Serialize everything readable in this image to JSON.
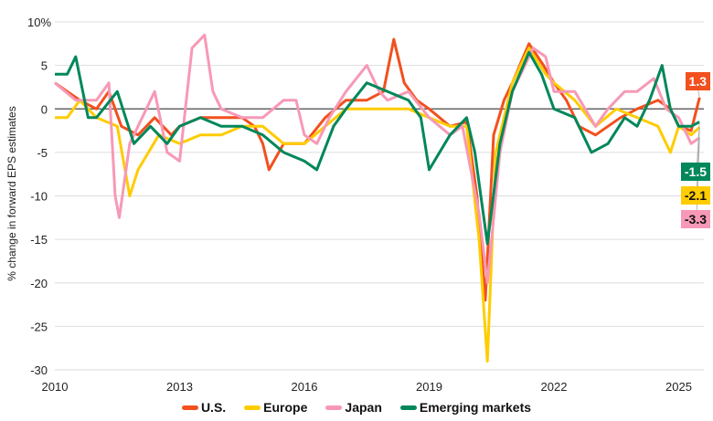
{
  "chart_data": {
    "type": "line",
    "ylabel": "% change in forward EPS estimates",
    "ylim": [
      -30,
      10
    ],
    "yticks": [
      "10%",
      "5",
      "0",
      "-5",
      "-10",
      "-15",
      "-20",
      "-25",
      "-30"
    ],
    "xlim": [
      2010,
      2025.6
    ],
    "xticks": [
      "2010",
      "2013",
      "2016",
      "2019",
      "2022",
      "2025"
    ],
    "grid": true,
    "legend": "bottom",
    "series": [
      {
        "name": "U.S.",
        "color": "#f2501e",
        "end_label": "1.3",
        "points": [
          [
            2010,
            3
          ],
          [
            2010.3,
            2
          ],
          [
            2010.6,
            1
          ],
          [
            2011,
            0
          ],
          [
            2011.3,
            2
          ],
          [
            2011.6,
            -2
          ],
          [
            2012,
            -3
          ],
          [
            2012.4,
            -1
          ],
          [
            2012.8,
            -3
          ],
          [
            2013,
            -2
          ],
          [
            2013.5,
            -1
          ],
          [
            2014,
            -1
          ],
          [
            2014.5,
            -1
          ],
          [
            2014.8,
            -2
          ],
          [
            2015,
            -4
          ],
          [
            2015.15,
            -7
          ],
          [
            2015.5,
            -4
          ],
          [
            2016,
            -4
          ],
          [
            2016.5,
            -1
          ],
          [
            2017,
            1
          ],
          [
            2017.5,
            1
          ],
          [
            2017.9,
            2
          ],
          [
            2018.15,
            8
          ],
          [
            2018.4,
            3
          ],
          [
            2018.7,
            1
          ],
          [
            2019,
            0
          ],
          [
            2019.5,
            -2
          ],
          [
            2019.9,
            -1.5
          ],
          [
            2020.15,
            -10
          ],
          [
            2020.35,
            -22
          ],
          [
            2020.55,
            -3
          ],
          [
            2020.8,
            1
          ],
          [
            2021,
            3
          ],
          [
            2021.4,
            7.5
          ],
          [
            2021.75,
            5
          ],
          [
            2022,
            3
          ],
          [
            2022.3,
            1
          ],
          [
            2022.6,
            -2
          ],
          [
            2023,
            -3
          ],
          [
            2023.3,
            -2
          ],
          [
            2023.6,
            -1
          ],
          [
            2024,
            0
          ],
          [
            2024.5,
            1
          ],
          [
            2024.8,
            0
          ],
          [
            2025,
            -2
          ],
          [
            2025.3,
            -2.5
          ],
          [
            2025.5,
            1.3
          ]
        ]
      },
      {
        "name": "Europe",
        "color": "#ffcc00",
        "end_label": "-2.1",
        "points": [
          [
            2010,
            -1
          ],
          [
            2010.3,
            -1
          ],
          [
            2010.6,
            1
          ],
          [
            2011,
            -1
          ],
          [
            2011.5,
            -2
          ],
          [
            2011.8,
            -10
          ],
          [
            2012,
            -7
          ],
          [
            2012.5,
            -3
          ],
          [
            2013,
            -4
          ],
          [
            2013.5,
            -3
          ],
          [
            2014,
            -3
          ],
          [
            2014.5,
            -2
          ],
          [
            2015,
            -2
          ],
          [
            2015.5,
            -4
          ],
          [
            2016,
            -4
          ],
          [
            2016.5,
            -2
          ],
          [
            2017,
            0
          ],
          [
            2017.5,
            0
          ],
          [
            2018,
            0
          ],
          [
            2018.5,
            0
          ],
          [
            2019,
            -1
          ],
          [
            2019.5,
            -2
          ],
          [
            2019.9,
            -2
          ],
          [
            2020.2,
            -15
          ],
          [
            2020.4,
            -29
          ],
          [
            2020.6,
            -5
          ],
          [
            2021,
            3
          ],
          [
            2021.4,
            7
          ],
          [
            2021.8,
            4
          ],
          [
            2022,
            3
          ],
          [
            2022.5,
            1
          ],
          [
            2023,
            -2
          ],
          [
            2023.5,
            0
          ],
          [
            2024,
            -1
          ],
          [
            2024.5,
            -2
          ],
          [
            2024.8,
            -5
          ],
          [
            2025,
            -2
          ],
          [
            2025.3,
            -3
          ],
          [
            2025.5,
            -2.1
          ]
        ]
      },
      {
        "name": "Japan",
        "color": "#f799b6",
        "end_label": "-3.3",
        "points": [
          [
            2010,
            3
          ],
          [
            2010.5,
            1
          ],
          [
            2011,
            1
          ],
          [
            2011.3,
            3
          ],
          [
            2011.45,
            -10
          ],
          [
            2011.55,
            -12.5
          ],
          [
            2011.8,
            -4
          ],
          [
            2012,
            -2
          ],
          [
            2012.4,
            2
          ],
          [
            2012.7,
            -5
          ],
          [
            2013,
            -6
          ],
          [
            2013.3,
            7
          ],
          [
            2013.6,
            8.5
          ],
          [
            2013.8,
            2
          ],
          [
            2014,
            0
          ],
          [
            2014.5,
            -1
          ],
          [
            2015,
            -1
          ],
          [
            2015.5,
            1
          ],
          [
            2015.8,
            1
          ],
          [
            2016,
            -3
          ],
          [
            2016.3,
            -4
          ],
          [
            2016.6,
            -1
          ],
          [
            2017,
            2
          ],
          [
            2017.5,
            5
          ],
          [
            2017.8,
            2
          ],
          [
            2018,
            1
          ],
          [
            2018.5,
            2
          ],
          [
            2019,
            -1
          ],
          [
            2019.5,
            -3
          ],
          [
            2019.8,
            -2
          ],
          [
            2020.2,
            -12
          ],
          [
            2020.4,
            -20
          ],
          [
            2020.7,
            -5
          ],
          [
            2021,
            2
          ],
          [
            2021.5,
            7
          ],
          [
            2021.8,
            6
          ],
          [
            2022,
            2
          ],
          [
            2022.5,
            2
          ],
          [
            2023,
            -2
          ],
          [
            2023.3,
            0
          ],
          [
            2023.7,
            2
          ],
          [
            2024,
            2
          ],
          [
            2024.4,
            3.5
          ],
          [
            2024.7,
            0
          ],
          [
            2025,
            -1
          ],
          [
            2025.3,
            -4
          ],
          [
            2025.5,
            -3.3
          ]
        ]
      },
      {
        "name": "Emerging markets",
        "color": "#00875a",
        "end_label": "-1.5",
        "points": [
          [
            2010,
            4
          ],
          [
            2010.3,
            4
          ],
          [
            2010.5,
            6
          ],
          [
            2010.8,
            -1
          ],
          [
            2011,
            -1
          ],
          [
            2011.5,
            2
          ],
          [
            2011.9,
            -4
          ],
          [
            2012.3,
            -2
          ],
          [
            2012.7,
            -4
          ],
          [
            2013,
            -2
          ],
          [
            2013.5,
            -1
          ],
          [
            2014,
            -2
          ],
          [
            2014.5,
            -2
          ],
          [
            2015,
            -3
          ],
          [
            2015.5,
            -5
          ],
          [
            2016,
            -6
          ],
          [
            2016.3,
            -7
          ],
          [
            2016.7,
            -2
          ],
          [
            2017,
            0
          ],
          [
            2017.5,
            3
          ],
          [
            2018,
            2
          ],
          [
            2018.5,
            1
          ],
          [
            2018.8,
            -1
          ],
          [
            2019,
            -7
          ],
          [
            2019.5,
            -3
          ],
          [
            2019.9,
            -1
          ],
          [
            2020.1,
            -5
          ],
          [
            2020.4,
            -15.5
          ],
          [
            2020.7,
            -4
          ],
          [
            2021,
            2
          ],
          [
            2021.4,
            6.5
          ],
          [
            2021.7,
            4
          ],
          [
            2022,
            0
          ],
          [
            2022.5,
            -1
          ],
          [
            2022.9,
            -5
          ],
          [
            2023.3,
            -4
          ],
          [
            2023.7,
            -1
          ],
          [
            2024,
            -2
          ],
          [
            2024.3,
            1
          ],
          [
            2024.6,
            5
          ],
          [
            2024.8,
            0
          ],
          [
            2025,
            -2
          ],
          [
            2025.3,
            -2
          ],
          [
            2025.5,
            -1.5
          ]
        ]
      }
    ]
  }
}
